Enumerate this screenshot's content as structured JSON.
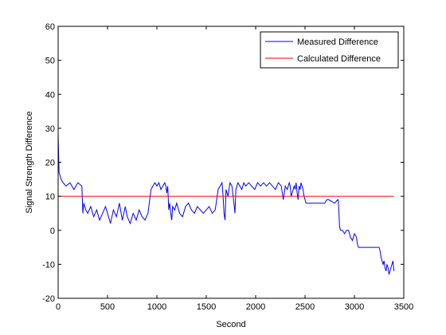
{
  "chart_data": {
    "type": "line",
    "xlabel": "Second",
    "ylabel": "Signal Strength Difference",
    "xlim": [
      0,
      3500
    ],
    "ylim": [
      -20,
      60
    ],
    "xticks": [
      0,
      500,
      1000,
      1500,
      2000,
      2500,
      3000,
      3500
    ],
    "yticks": [
      -20,
      -10,
      0,
      10,
      20,
      30,
      40,
      50,
      60
    ],
    "xtick_labels": [
      "0",
      "500",
      "1000",
      "1500",
      "2000",
      "2500",
      "3000",
      "3500"
    ],
    "ytick_labels": [
      "-20",
      "-10",
      "0",
      "10",
      "20",
      "30",
      "40",
      "50",
      "60"
    ],
    "grid": false,
    "legend_position": "top-right",
    "series": [
      {
        "name": "Measured Difference",
        "color": "#0000ff",
        "x": [
          0,
          5,
          10,
          20,
          30,
          50,
          80,
          120,
          160,
          200,
          240,
          250,
          260,
          280,
          300,
          330,
          360,
          390,
          420,
          450,
          480,
          500,
          530,
          560,
          590,
          620,
          650,
          680,
          700,
          730,
          760,
          790,
          820,
          850,
          880,
          910,
          940,
          960,
          980,
          1000,
          1020,
          1040,
          1060,
          1080,
          1090,
          1100,
          1110,
          1120,
          1130,
          1140,
          1150,
          1160,
          1180,
          1200,
          1230,
          1260,
          1290,
          1320,
          1350,
          1380,
          1410,
          1440,
          1470,
          1500,
          1530,
          1560,
          1590,
          1620,
          1640,
          1660,
          1670,
          1680,
          1690,
          1700,
          1720,
          1740,
          1760,
          1780,
          1790,
          1800,
          1820,
          1840,
          1860,
          1880,
          1900,
          1930,
          1960,
          1990,
          2020,
          2050,
          2080,
          2110,
          2140,
          2170,
          2200,
          2230,
          2260,
          2280,
          2300,
          2320,
          2340,
          2350,
          2360,
          2370,
          2380,
          2390,
          2400,
          2410,
          2420,
          2430,
          2440,
          2450,
          2460,
          2470,
          2480,
          2490,
          2500,
          2510,
          2600,
          2700,
          2720,
          2730,
          2740,
          2800,
          2830,
          2835,
          2840,
          2850,
          2860,
          2880,
          2900,
          2920,
          2940,
          2960,
          2980,
          3000,
          3020,
          3030,
          3040,
          3060,
          3100,
          3200,
          3250,
          3260,
          3270,
          3280,
          3290,
          3300,
          3310,
          3320,
          3330,
          3340,
          3350,
          3360,
          3370,
          3380,
          3390,
          3400
        ],
        "y": [
          29,
          22,
          17,
          16,
          15,
          14,
          13,
          14,
          12,
          14,
          13,
          5,
          8,
          6,
          5,
          7,
          4,
          6,
          3,
          5,
          7,
          5,
          2,
          6,
          4,
          8,
          3,
          7,
          4,
          2,
          5,
          3,
          6,
          4,
          3,
          5,
          12,
          13,
          14,
          13,
          14,
          12,
          13,
          14,
          13,
          11,
          13,
          6,
          8,
          5,
          3,
          7,
          6,
          8,
          5,
          4,
          7,
          8,
          6,
          5,
          7,
          6,
          5,
          6,
          7,
          5,
          6,
          12,
          13,
          14,
          10,
          5,
          3,
          12,
          10,
          14,
          13,
          8,
          5,
          12,
          14,
          13,
          12,
          14,
          13,
          14,
          13,
          12,
          14,
          13,
          14,
          13,
          14,
          13,
          12,
          14,
          13,
          9,
          13,
          12,
          14,
          13,
          10,
          11,
          12,
          13,
          12,
          14,
          11,
          9,
          13,
          12,
          14,
          13,
          12,
          10,
          9,
          8,
          8,
          8,
          9,
          9,
          9,
          8,
          9,
          9,
          7,
          1,
          0,
          0,
          -1,
          0,
          0,
          -2,
          -3,
          -1,
          -2,
          -4,
          -5,
          -5,
          -5,
          -5,
          -5,
          -6,
          -8,
          -9,
          -10,
          -9,
          -11,
          -12,
          -10,
          -11,
          -13,
          -12,
          -11,
          -10,
          -9,
          -12
        ]
      },
      {
        "name": "Calculated Difference",
        "color": "#ff0000",
        "x": [
          0,
          3400
        ],
        "y": [
          10,
          10
        ]
      }
    ]
  }
}
